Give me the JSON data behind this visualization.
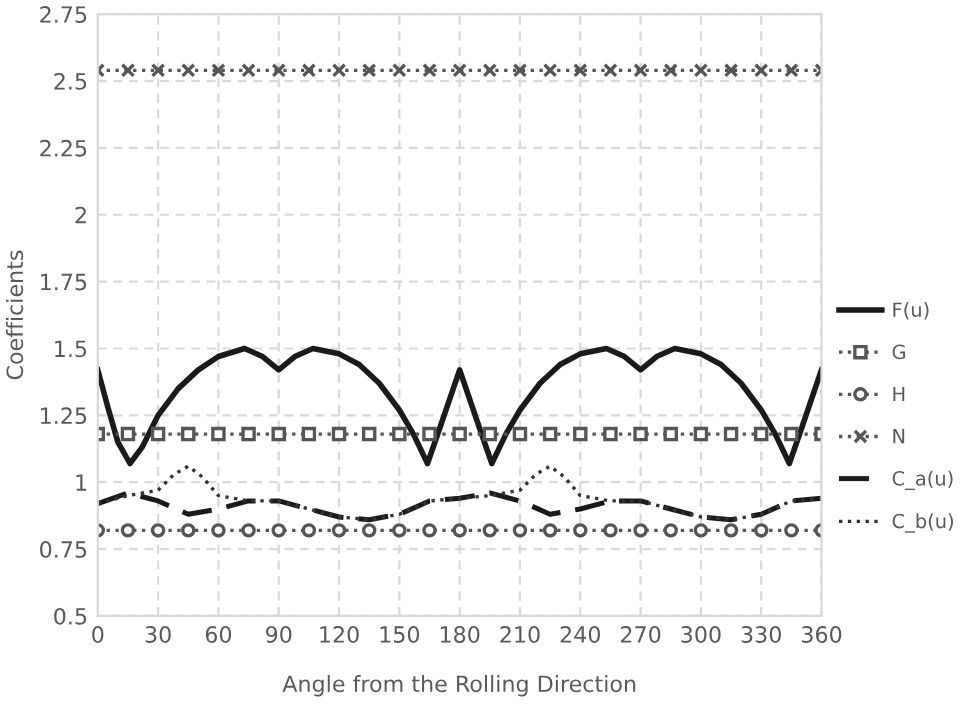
{
  "chart_data": {
    "type": "line",
    "xlabel": "Angle from the Rolling Direction",
    "ylabel": "Coefficients",
    "xlim": [
      0,
      360
    ],
    "xticks": [
      0,
      30,
      60,
      90,
      120,
      150,
      180,
      210,
      240,
      270,
      300,
      330,
      360
    ],
    "ylim": [
      0.5,
      2.75
    ],
    "yticks": [
      0.5,
      0.75,
      1,
      1.25,
      1.5,
      1.75,
      2,
      2.25,
      2.5,
      2.75
    ],
    "grid": true,
    "legend": "right",
    "series": [
      {
        "name": "F(u)",
        "color": "#1a1a1a",
        "line_style": "solid",
        "marker": "none",
        "x": [
          0,
          5,
          10,
          16,
          22,
          30,
          40,
          50,
          60,
          73,
          82,
          90,
          98,
          107,
          120,
          130,
          140,
          150,
          157,
          164,
          170,
          180,
          190,
          196,
          203,
          210,
          220,
          230,
          240,
          253,
          262,
          270,
          278,
          287,
          300,
          310,
          320,
          330,
          337,
          344,
          350,
          360
        ],
        "values": [
          1.42,
          1.28,
          1.15,
          1.07,
          1.13,
          1.25,
          1.35,
          1.42,
          1.47,
          1.5,
          1.47,
          1.42,
          1.47,
          1.5,
          1.48,
          1.44,
          1.37,
          1.27,
          1.18,
          1.07,
          1.2,
          1.42,
          1.2,
          1.07,
          1.18,
          1.27,
          1.37,
          1.44,
          1.48,
          1.5,
          1.47,
          1.42,
          1.47,
          1.5,
          1.48,
          1.44,
          1.37,
          1.27,
          1.18,
          1.07,
          1.2,
          1.42
        ]
      },
      {
        "name": "G",
        "color": "#555555",
        "line_style": "dotted",
        "marker": "square",
        "x": [
          0,
          15,
          30,
          45,
          60,
          75,
          90,
          105,
          120,
          135,
          150,
          165,
          180,
          195,
          210,
          225,
          240,
          255,
          270,
          285,
          300,
          315,
          330,
          345,
          360
        ],
        "values": [
          1.18,
          1.18,
          1.18,
          1.18,
          1.18,
          1.18,
          1.18,
          1.18,
          1.18,
          1.18,
          1.18,
          1.18,
          1.18,
          1.18,
          1.18,
          1.18,
          1.18,
          1.18,
          1.18,
          1.18,
          1.18,
          1.18,
          1.18,
          1.18,
          1.18
        ]
      },
      {
        "name": "H",
        "color": "#555555",
        "line_style": "dotted",
        "marker": "circle",
        "x": [
          0,
          15,
          30,
          45,
          60,
          75,
          90,
          105,
          120,
          135,
          150,
          165,
          180,
          195,
          210,
          225,
          240,
          255,
          270,
          285,
          300,
          315,
          330,
          345,
          360
        ],
        "values": [
          0.82,
          0.82,
          0.82,
          0.82,
          0.82,
          0.82,
          0.82,
          0.82,
          0.82,
          0.82,
          0.82,
          0.82,
          0.82,
          0.82,
          0.82,
          0.82,
          0.82,
          0.82,
          0.82,
          0.82,
          0.82,
          0.82,
          0.82,
          0.82,
          0.82
        ]
      },
      {
        "name": "N",
        "color": "#555555",
        "line_style": "dotted",
        "marker": "cross",
        "x": [
          0,
          15,
          30,
          45,
          60,
          75,
          90,
          105,
          120,
          135,
          150,
          165,
          180,
          195,
          210,
          225,
          240,
          255,
          270,
          285,
          300,
          315,
          330,
          345,
          360
        ],
        "values": [
          2.54,
          2.54,
          2.54,
          2.54,
          2.54,
          2.54,
          2.54,
          2.54,
          2.54,
          2.54,
          2.54,
          2.54,
          2.54,
          2.54,
          2.54,
          2.54,
          2.54,
          2.54,
          2.54,
          2.54,
          2.54,
          2.54,
          2.54,
          2.54,
          2.54
        ]
      },
      {
        "name": "C_a(u)",
        "color": "#1a1a1a",
        "line_style": "dashed",
        "marker": "none",
        "x": [
          0,
          15,
          30,
          45,
          60,
          75,
          90,
          105,
          120,
          135,
          150,
          165,
          180,
          195,
          210,
          225,
          240,
          255,
          270,
          285,
          300,
          315,
          330,
          345,
          360
        ],
        "values": [
          0.92,
          0.96,
          0.93,
          0.88,
          0.9,
          0.93,
          0.93,
          0.9,
          0.87,
          0.86,
          0.88,
          0.93,
          0.94,
          0.96,
          0.93,
          0.88,
          0.9,
          0.93,
          0.93,
          0.9,
          0.87,
          0.86,
          0.88,
          0.93,
          0.94
        ]
      },
      {
        "name": "C_b(u)",
        "color": "#333333",
        "line_style": "dotted",
        "marker": "none",
        "x": [
          0,
          15,
          30,
          38,
          45,
          52,
          60,
          75,
          90,
          105,
          120,
          135,
          150,
          165,
          180,
          195,
          210,
          218,
          225,
          232,
          240,
          255,
          270,
          285,
          300,
          315,
          330,
          345,
          360
        ],
        "values": [
          0.92,
          0.95,
          0.97,
          1.03,
          1.06,
          1.02,
          0.95,
          0.93,
          0.93,
          0.9,
          0.87,
          0.86,
          0.88,
          0.93,
          0.94,
          0.95,
          0.97,
          1.03,
          1.06,
          1.02,
          0.95,
          0.93,
          0.93,
          0.9,
          0.87,
          0.86,
          0.88,
          0.93,
          0.94
        ]
      }
    ]
  }
}
